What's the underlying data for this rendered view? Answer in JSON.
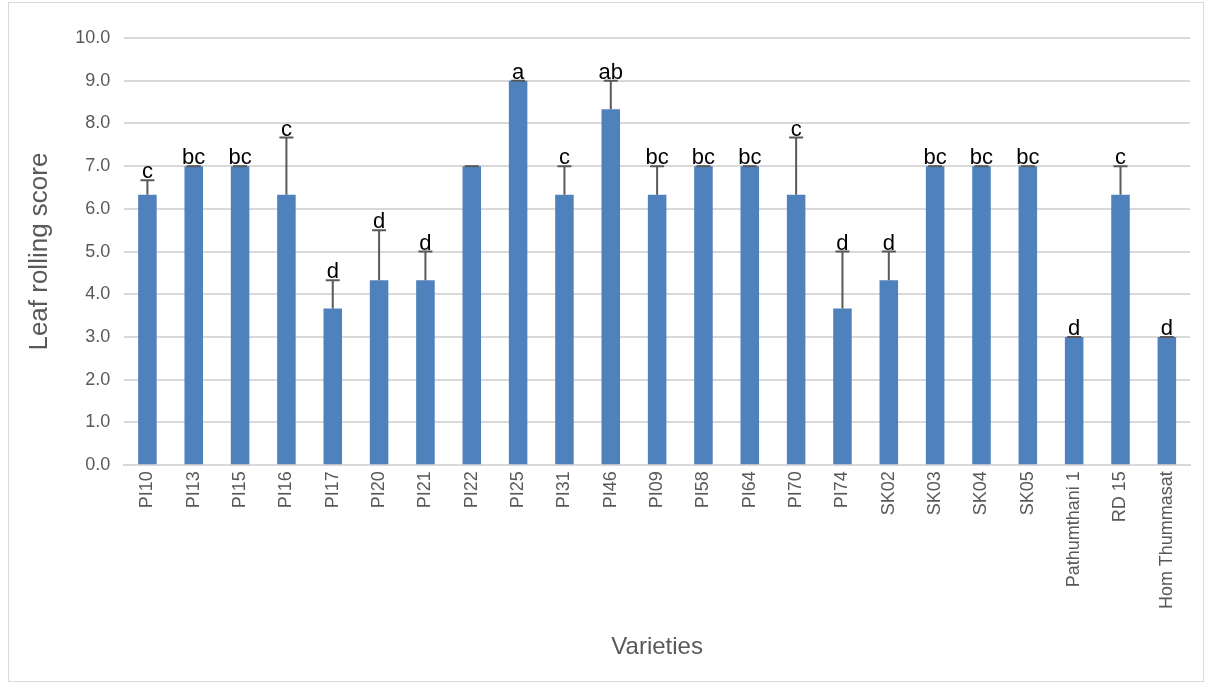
{
  "chart_data": {
    "type": "bar",
    "xlabel": "Varieties",
    "ylabel": "Leaf rolling score",
    "categories": [
      "PI10",
      "PI13",
      "PI15",
      "PI16",
      "PI17",
      "PI20",
      "PI21",
      "PI22",
      "PI25",
      "PI31",
      "PI46",
      "PI09",
      "PI58",
      "PI64",
      "PI70",
      "PI74",
      "SK02",
      "SK03",
      "SK04",
      "SK05",
      "Pathumthani 1",
      "RD 15",
      "Hom Thummasat"
    ],
    "values": [
      6.33,
      7,
      7,
      6.33,
      3.67,
      4.33,
      4.33,
      7,
      9,
      6.33,
      8.33,
      6.33,
      7,
      7,
      6.33,
      3.67,
      4.33,
      7,
      7,
      7,
      3,
      6.33,
      3
    ],
    "errors": [
      [
        6.33,
        6.67
      ],
      [
        7,
        7
      ],
      [
        7,
        7
      ],
      [
        6.33,
        7.67
      ],
      [
        3.67,
        4.33
      ],
      [
        4.33,
        5.5
      ],
      [
        4.33,
        5
      ],
      [
        7,
        7
      ],
      [
        9,
        9
      ],
      [
        6.33,
        7
      ],
      [
        8.33,
        9
      ],
      [
        6.33,
        7
      ],
      [
        7,
        7
      ],
      [
        7,
        7
      ],
      [
        6.33,
        7.67
      ],
      [
        3.67,
        5
      ],
      [
        4.33,
        5
      ],
      [
        7,
        7
      ],
      [
        7,
        7
      ],
      [
        7,
        7
      ],
      [
        3,
        3
      ],
      [
        6.33,
        7
      ],
      [
        3,
        3
      ]
    ],
    "color": "#4f81bd",
    "ylim": [
      0,
      10
    ],
    "yticks": [
      {
        "value": 0,
        "label": "0.0"
      },
      {
        "value": 1,
        "label": "1.0"
      },
      {
        "value": 2,
        "label": "2.0"
      },
      {
        "value": 3,
        "label": "3.0"
      },
      {
        "value": 4,
        "label": "4.0"
      },
      {
        "value": 5,
        "label": "5.0"
      },
      {
        "value": 6,
        "label": "6.0"
      },
      {
        "value": 7,
        "label": "7.0"
      },
      {
        "value": 8,
        "label": "8.0"
      },
      {
        "value": 9,
        "label": "9.0"
      },
      {
        "value": 10,
        "label": "10.0"
      }
    ],
    "grid": "y",
    "annotations": [
      {
        "text": "c",
        "x": "PI10",
        "y": 6.67
      },
      {
        "text": "bc",
        "x": "PI13",
        "y": 7
      },
      {
        "text": "bc",
        "x": "PI15",
        "y": 7
      },
      {
        "text": "c",
        "x": "PI16",
        "y": 7.67
      },
      {
        "text": "d",
        "x": "PI17",
        "y": 4.33
      },
      {
        "text": "d",
        "x": "PI20",
        "y": 5.5
      },
      {
        "text": "d",
        "x": "PI21",
        "y": 5
      },
      {
        "text": "a",
        "x": "PI25",
        "y": 9
      },
      {
        "text": "c",
        "x": "PI31",
        "y": 7
      },
      {
        "text": "ab",
        "x": "PI46",
        "y": 9
      },
      {
        "text": "bc",
        "x": "PI09",
        "y": 7
      },
      {
        "text": "bc",
        "x": "PI58",
        "y": 7
      },
      {
        "text": "bc",
        "x": "PI64",
        "y": 7
      },
      {
        "text": "c",
        "x": "PI70",
        "y": 7.67
      },
      {
        "text": "d",
        "x": "PI74",
        "y": 5
      },
      {
        "text": "d",
        "x": "SK02",
        "y": 5
      },
      {
        "text": "bc",
        "x": "SK03",
        "y": 7
      },
      {
        "text": "bc",
        "x": "SK04",
        "y": 7
      },
      {
        "text": "bc",
        "x": "SK05",
        "y": 7
      },
      {
        "text": "d",
        "x": "Pathumthani 1",
        "y": 3
      },
      {
        "text": "c",
        "x": "RD 15",
        "y": 7
      },
      {
        "text": "d",
        "x": "Hom Thummasat",
        "y": 3
      }
    ]
  }
}
